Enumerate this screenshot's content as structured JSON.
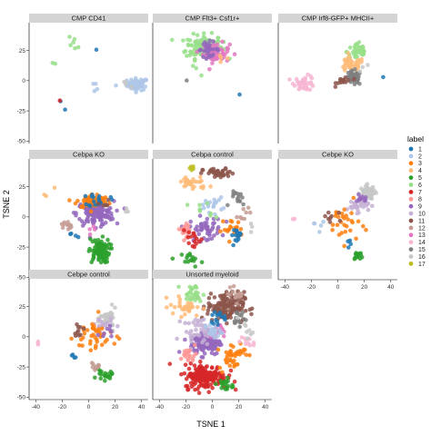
{
  "chart_data": {
    "type": "scatter",
    "xlabel": "TSNE 1",
    "ylabel": "TSNE 2",
    "xlim": [
      -45,
      45
    ],
    "ylim": [
      -52,
      48
    ],
    "x_ticks": [
      -40,
      -20,
      0,
      20,
      40
    ],
    "y_ticks": [
      -50,
      -25,
      0,
      25
    ],
    "x_tick_labels": [
      "-40",
      "-20",
      "0",
      "20",
      "40"
    ],
    "y_tick_labels": [
      "-50",
      "-25",
      "0",
      "25"
    ],
    "legend": {
      "title": "label",
      "position": "right",
      "entries": [
        {
          "label": "1",
          "color": "#1f77b4"
        },
        {
          "label": "2",
          "color": "#aec7e8"
        },
        {
          "label": "3",
          "color": "#ff7f0e"
        },
        {
          "label": "4",
          "color": "#ffbb78"
        },
        {
          "label": "5",
          "color": "#2ca02c"
        },
        {
          "label": "6",
          "color": "#98df8a"
        },
        {
          "label": "7",
          "color": "#d62728"
        },
        {
          "label": "8",
          "color": "#ff9896"
        },
        {
          "label": "9",
          "color": "#9467bd"
        },
        {
          "label": "10",
          "color": "#c5b0d5"
        },
        {
          "label": "11",
          "color": "#8c564b"
        },
        {
          "label": "12",
          "color": "#c49c94"
        },
        {
          "label": "13",
          "color": "#e377c2"
        },
        {
          "label": "14",
          "color": "#f7b6d2"
        },
        {
          "label": "15",
          "color": "#7f7f7f"
        },
        {
          "label": "16",
          "color": "#c7c7c7"
        },
        {
          "label": "17",
          "color": "#bcbd22"
        }
      ]
    },
    "panels": [
      {
        "title": "CMP CD41",
        "clusters": [
          {
            "label": 2,
            "x": 37,
            "y": -3,
            "sx": 4,
            "sy": 2.5,
            "n": 60
          },
          {
            "label": 6,
            "x": -15,
            "y": 28,
            "sx": 5,
            "sy": 5,
            "n": 6
          },
          {
            "label": 2,
            "x": 10,
            "y": -5,
            "sx": 6,
            "sy": 3,
            "n": 5
          },
          {
            "label": 1,
            "x": -20,
            "y": -22,
            "sx": 2,
            "sy": 2,
            "n": 2
          },
          {
            "label": 7,
            "x": -22,
            "y": -17,
            "sx": 1,
            "sy": 1,
            "n": 1
          },
          {
            "label": 1,
            "x": 5,
            "y": 27,
            "sx": 1,
            "sy": 1,
            "n": 1
          },
          {
            "label": 6,
            "x": -25,
            "y": 15,
            "sx": 2,
            "sy": 2,
            "n": 2
          },
          {
            "label": 16,
            "x": 28,
            "y": -4,
            "sx": 2,
            "sy": 2,
            "n": 4
          }
        ]
      },
      {
        "title": "CMP Flt3+ Csf1r+",
        "clusters": [
          {
            "label": 6,
            "x": -6,
            "y": 28,
            "sx": 7,
            "sy": 5,
            "n": 140
          },
          {
            "label": 13,
            "x": 3,
            "y": 23,
            "sx": 5,
            "sy": 4,
            "n": 60
          },
          {
            "label": 9,
            "x": -3,
            "y": 26,
            "sx": 4,
            "sy": 3,
            "n": 30
          },
          {
            "label": 6,
            "x": -15,
            "y": 12,
            "sx": 3,
            "sy": 3,
            "n": 4
          },
          {
            "label": 4,
            "x": 8,
            "y": 18,
            "sx": 2,
            "sy": 2,
            "n": 4
          },
          {
            "label": 15,
            "x": -18,
            "y": 2,
            "sx": 1,
            "sy": 1,
            "n": 1
          },
          {
            "label": 1,
            "x": 20,
            "y": -12,
            "sx": 1,
            "sy": 1,
            "n": 1
          }
        ]
      },
      {
        "title": "CMP Irf8-GFP+ MHCII+",
        "clusters": [
          {
            "label": 6,
            "x": 15,
            "y": 24,
            "sx": 4,
            "sy": 4,
            "n": 40
          },
          {
            "label": 4,
            "x": 10,
            "y": 13,
            "sx": 5,
            "sy": 3,
            "n": 40
          },
          {
            "label": 15,
            "x": 12,
            "y": 2,
            "sx": 3,
            "sy": 3,
            "n": 40
          },
          {
            "label": 11,
            "x": 5,
            "y": 0,
            "sx": 3,
            "sy": 2,
            "n": 15
          },
          {
            "label": 14,
            "x": -25,
            "y": -2,
            "sx": 4,
            "sy": 3,
            "n": 40
          },
          {
            "label": 1,
            "x": 35,
            "y": 4,
            "sx": 1,
            "sy": 1,
            "n": 1
          },
          {
            "label": 16,
            "x": 20,
            "y": 12,
            "sx": 2,
            "sy": 2,
            "n": 3
          }
        ]
      },
      {
        "title": "Cebpa KO",
        "clusters": [
          {
            "label": 9,
            "x": 5,
            "y": 3,
            "sx": 7,
            "sy": 5,
            "n": 140
          },
          {
            "label": 3,
            "x": 3,
            "y": 13,
            "sx": 6,
            "sy": 3,
            "n": 60
          },
          {
            "label": 1,
            "x": 8,
            "y": 14,
            "sx": 4,
            "sy": 3,
            "n": 20
          },
          {
            "label": 5,
            "x": 8,
            "y": -28,
            "sx": 4,
            "sy": 5,
            "n": 90
          },
          {
            "label": 12,
            "x": -17,
            "y": -7,
            "sx": 2,
            "sy": 2,
            "n": 12
          },
          {
            "label": 1,
            "x": -10,
            "y": -15,
            "sx": 2,
            "sy": 2,
            "n": 4
          },
          {
            "label": 4,
            "x": -30,
            "y": 20,
            "sx": 3,
            "sy": 3,
            "n": 3
          },
          {
            "label": 13,
            "x": 2,
            "y": -10,
            "sx": 2,
            "sy": 2,
            "n": 4
          },
          {
            "label": 16,
            "x": 28,
            "y": 5,
            "sx": 2,
            "sy": 2,
            "n": 3
          },
          {
            "label": 11,
            "x": 12,
            "y": 10,
            "sx": 2,
            "sy": 2,
            "n": 5
          }
        ]
      },
      {
        "title": "Cebpa control",
        "clusters": [
          {
            "label": 11,
            "x": 5,
            "y": 36,
            "sx": 6,
            "sy": 2,
            "n": 40
          },
          {
            "label": 17,
            "x": -15,
            "y": 40,
            "sx": 1.5,
            "sy": 1.5,
            "n": 5
          },
          {
            "label": 4,
            "x": -15,
            "y": 28,
            "sx": 6,
            "sy": 3,
            "n": 30
          },
          {
            "label": 2,
            "x": 0,
            "y": 10,
            "sx": 4,
            "sy": 3,
            "n": 20
          },
          {
            "label": 9,
            "x": -5,
            "y": -10,
            "sx": 6,
            "sy": 5,
            "n": 50
          },
          {
            "label": 8,
            "x": -20,
            "y": -10,
            "sx": 3,
            "sy": 3,
            "n": 20
          },
          {
            "label": 7,
            "x": -15,
            "y": -20,
            "sx": 4,
            "sy": 4,
            "n": 15
          },
          {
            "label": 3,
            "x": 15,
            "y": -10,
            "sx": 4,
            "sy": 4,
            "n": 20
          },
          {
            "label": 1,
            "x": 20,
            "y": -15,
            "sx": 3,
            "sy": 3,
            "n": 15
          },
          {
            "label": 15,
            "x": 20,
            "y": 15,
            "sx": 3,
            "sy": 3,
            "n": 15
          },
          {
            "label": 5,
            "x": -15,
            "y": -35,
            "sx": 4,
            "sy": 3,
            "n": 15
          },
          {
            "label": 6,
            "x": -10,
            "y": 5,
            "sx": 5,
            "sy": 5,
            "n": 8
          },
          {
            "label": 12,
            "x": 25,
            "y": 5,
            "sx": 3,
            "sy": 3,
            "n": 8
          },
          {
            "label": 16,
            "x": 30,
            "y": -10,
            "sx": 2,
            "sy": 2,
            "n": 3
          }
        ]
      },
      {
        "title": "Cebpe KO",
        "clusters": [
          {
            "label": 16,
            "x": 23,
            "y": 20,
            "sx": 3,
            "sy": 3,
            "n": 50
          },
          {
            "label": 10,
            "x": 15,
            "y": 10,
            "sx": 4,
            "sy": 3,
            "n": 35
          },
          {
            "label": 9,
            "x": 18,
            "y": 14,
            "sx": 2,
            "sy": 2,
            "n": 10
          },
          {
            "label": 3,
            "x": 5,
            "y": -5,
            "sx": 6,
            "sy": 8,
            "n": 30
          },
          {
            "label": 5,
            "x": 15,
            "y": -32,
            "sx": 2,
            "sy": 2,
            "n": 15
          },
          {
            "label": 2,
            "x": -15,
            "y": -5,
            "sx": 3,
            "sy": 3,
            "n": 5
          },
          {
            "label": 11,
            "x": -5,
            "y": 0,
            "sx": 4,
            "sy": 3,
            "n": 8
          },
          {
            "label": 1,
            "x": 10,
            "y": -25,
            "sx": 2,
            "sy": 2,
            "n": 4
          },
          {
            "label": 14,
            "x": -35,
            "y": -5,
            "sx": 2,
            "sy": 2,
            "n": 2
          }
        ]
      },
      {
        "title": "Cebpe control",
        "clusters": [
          {
            "label": 16,
            "x": 15,
            "y": 15,
            "sx": 3,
            "sy": 4,
            "n": 40
          },
          {
            "label": 10,
            "x": 10,
            "y": 10,
            "sx": 4,
            "sy": 3,
            "n": 20
          },
          {
            "label": 3,
            "x": 5,
            "y": 0,
            "sx": 8,
            "sy": 8,
            "n": 40
          },
          {
            "label": 5,
            "x": 12,
            "y": -32,
            "sx": 3,
            "sy": 2,
            "n": 20
          },
          {
            "label": 11,
            "x": -8,
            "y": 5,
            "sx": 2,
            "sy": 2,
            "n": 10
          },
          {
            "label": 12,
            "x": 5,
            "y": -25,
            "sx": 2,
            "sy": 2,
            "n": 10
          },
          {
            "label": 1,
            "x": -10,
            "y": -15,
            "sx": 2,
            "sy": 2,
            "n": 4
          },
          {
            "label": 14,
            "x": -38,
            "y": -5,
            "sx": 1.5,
            "sy": 1,
            "n": 3
          },
          {
            "label": 9,
            "x": 15,
            "y": 5,
            "sx": 3,
            "sy": 3,
            "n": 8
          }
        ]
      },
      {
        "title": "Unsorted myeloid",
        "clusters": [
          {
            "label": 11,
            "x": 10,
            "y": 25,
            "sx": 7,
            "sy": 6,
            "n": 150
          },
          {
            "label": 6,
            "x": -15,
            "y": 35,
            "sx": 4,
            "sy": 4,
            "n": 30
          },
          {
            "label": 4,
            "x": -20,
            "y": 25,
            "sx": 6,
            "sy": 4,
            "n": 30
          },
          {
            "label": 9,
            "x": -5,
            "y": -5,
            "sx": 6,
            "sy": 5,
            "n": 120
          },
          {
            "label": 7,
            "x": -5,
            "y": -33,
            "sx": 8,
            "sy": 5,
            "n": 180
          },
          {
            "label": 3,
            "x": 15,
            "y": -15,
            "sx": 5,
            "sy": 6,
            "n": 40
          },
          {
            "label": 10,
            "x": -10,
            "y": 5,
            "sx": 6,
            "sy": 5,
            "n": 40
          },
          {
            "label": 8,
            "x": -18,
            "y": -15,
            "sx": 3,
            "sy": 3,
            "n": 20
          },
          {
            "label": 13,
            "x": 5,
            "y": 5,
            "sx": 3,
            "sy": 3,
            "n": 15
          },
          {
            "label": 5,
            "x": 10,
            "y": -40,
            "sx": 3,
            "sy": 3,
            "n": 20
          },
          {
            "label": 2,
            "x": 0,
            "y": 5,
            "sx": 3,
            "sy": 3,
            "n": 20
          },
          {
            "label": 15,
            "x": 20,
            "y": 15,
            "sx": 3,
            "sy": 3,
            "n": 15
          },
          {
            "label": 14,
            "x": 25,
            "y": -5,
            "sx": 3,
            "sy": 3,
            "n": 10
          },
          {
            "label": 16,
            "x": 25,
            "y": 5,
            "sx": 3,
            "sy": 3,
            "n": 8
          },
          {
            "label": 12,
            "x": 18,
            "y": 35,
            "sx": 3,
            "sy": 3,
            "n": 15
          },
          {
            "label": 1,
            "x": 5,
            "y": 15,
            "sx": 3,
            "sy": 3,
            "n": 15
          }
        ]
      }
    ]
  }
}
